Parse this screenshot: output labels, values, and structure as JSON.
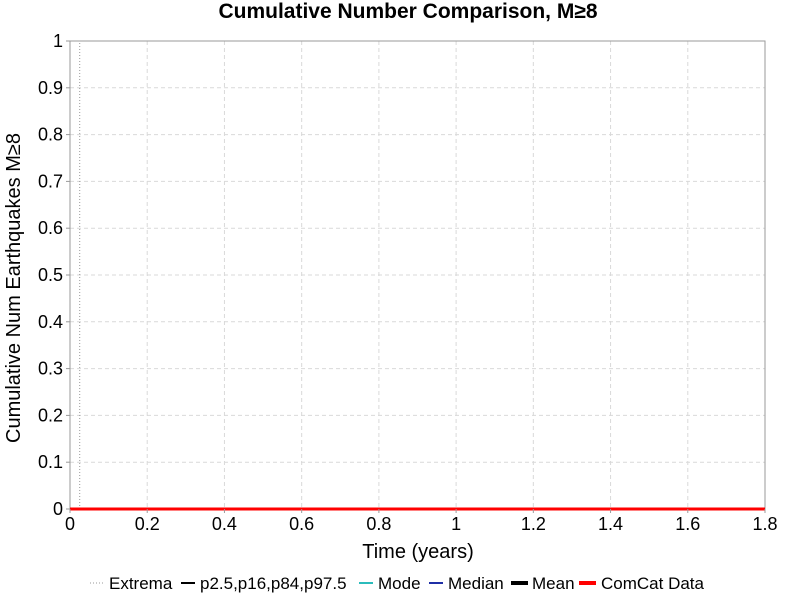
{
  "chart_data": {
    "type": "line",
    "title": "Cumulative Number Comparison, M≥8",
    "xlabel": "Time (years)",
    "ylabel": "Cumulative Num Earthquakes M≥8",
    "xlim": [
      0,
      1.8
    ],
    "ylim": [
      0,
      1
    ],
    "x_ticks": [
      0,
      0.2,
      0.4,
      0.6,
      0.8,
      1,
      1.2,
      1.4,
      1.6,
      1.8
    ],
    "x_tick_labels": [
      "0",
      "0.2",
      "0.4",
      "0.6",
      "0.8",
      "1",
      "1.2",
      "1.4",
      "1.6",
      "1.8"
    ],
    "y_ticks": [
      0,
      0.1,
      0.2,
      0.3,
      0.4,
      0.5,
      0.6,
      0.7,
      0.8,
      0.9,
      1
    ],
    "y_tick_labels": [
      "0",
      "0.1",
      "0.2",
      "0.3",
      "0.4",
      "0.5",
      "0.6",
      "0.7",
      "0.8",
      "0.9",
      "1"
    ],
    "grid": true,
    "legend_position": "bottom",
    "series": [
      {
        "name": "Extrema",
        "color": "#9a9a9a",
        "style": "dotted",
        "x": [
          0.025,
          0.025
        ],
        "y": [
          0,
          1
        ]
      },
      {
        "name": "p2.5,p16,p84,p97.5",
        "color": "#000000",
        "style": "solid",
        "x": [
          0,
          1.8
        ],
        "y": [
          0,
          0
        ]
      },
      {
        "name": "Mode",
        "color": "#2bbcbc",
        "style": "solid",
        "x": [
          0,
          1.8
        ],
        "y": [
          0,
          0
        ]
      },
      {
        "name": "Median",
        "color": "#1f2fa6",
        "style": "solid",
        "x": [
          0,
          1.8
        ],
        "y": [
          0,
          0
        ]
      },
      {
        "name": "Mean",
        "color": "#000000",
        "style": "solid",
        "x": [
          0,
          1.8
        ],
        "y": [
          0,
          0
        ]
      },
      {
        "name": "ComCat Data",
        "color": "#ff0000",
        "style": "solid",
        "x": [
          0,
          1.8
        ],
        "y": [
          0,
          0
        ]
      }
    ]
  }
}
